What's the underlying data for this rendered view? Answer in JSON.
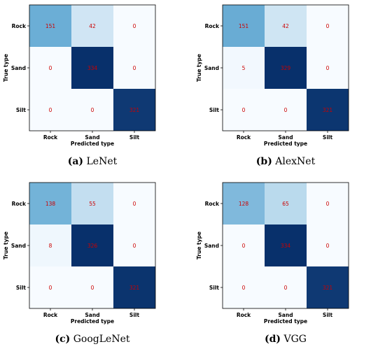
{
  "colors": {
    "value_text": "#cc0000",
    "scale_low": "#f7fbff",
    "scale_mid": "#6baed6",
    "scale_high": "#08306b"
  },
  "chart_data": [
    {
      "type": "heatmap",
      "caption_letter": "(a)",
      "caption_name": "LeNet",
      "xlabel": "Predicted type",
      "ylabel": "True type",
      "x_categories": [
        "Rock",
        "Sand",
        "Silt"
      ],
      "y_categories": [
        "Rock",
        "Sand",
        "Silt"
      ],
      "matrix": [
        [
          151,
          42,
          0
        ],
        [
          0,
          334,
          0
        ],
        [
          0,
          0,
          321
        ]
      ]
    },
    {
      "type": "heatmap",
      "caption_letter": "(b)",
      "caption_name": "AlexNet",
      "xlabel": "Predicted type",
      "ylabel": "True type",
      "x_categories": [
        "Rock",
        "Sand",
        "Silt"
      ],
      "y_categories": [
        "Rock",
        "Sand",
        "Silt"
      ],
      "matrix": [
        [
          151,
          42,
          0
        ],
        [
          5,
          329,
          0
        ],
        [
          0,
          0,
          321
        ]
      ]
    },
    {
      "type": "heatmap",
      "caption_letter": "(c)",
      "caption_name": "GoogLeNet",
      "xlabel": "Predicted type",
      "ylabel": "True type",
      "x_categories": [
        "Rock",
        "Sand",
        "Silt"
      ],
      "y_categories": [
        "Rock",
        "Sand",
        "Silt"
      ],
      "matrix": [
        [
          138,
          55,
          0
        ],
        [
          8,
          326,
          0
        ],
        [
          0,
          0,
          321
        ]
      ]
    },
    {
      "type": "heatmap",
      "caption_letter": "(d)",
      "caption_name": "VGG",
      "xlabel": "Predicted type",
      "ylabel": "True type",
      "x_categories": [
        "Rock",
        "Sand",
        "Silt"
      ],
      "y_categories": [
        "Rock",
        "Sand",
        "Silt"
      ],
      "matrix": [
        [
          128,
          65,
          0
        ],
        [
          0,
          334,
          0
        ],
        [
          0,
          0,
          321
        ]
      ]
    }
  ]
}
